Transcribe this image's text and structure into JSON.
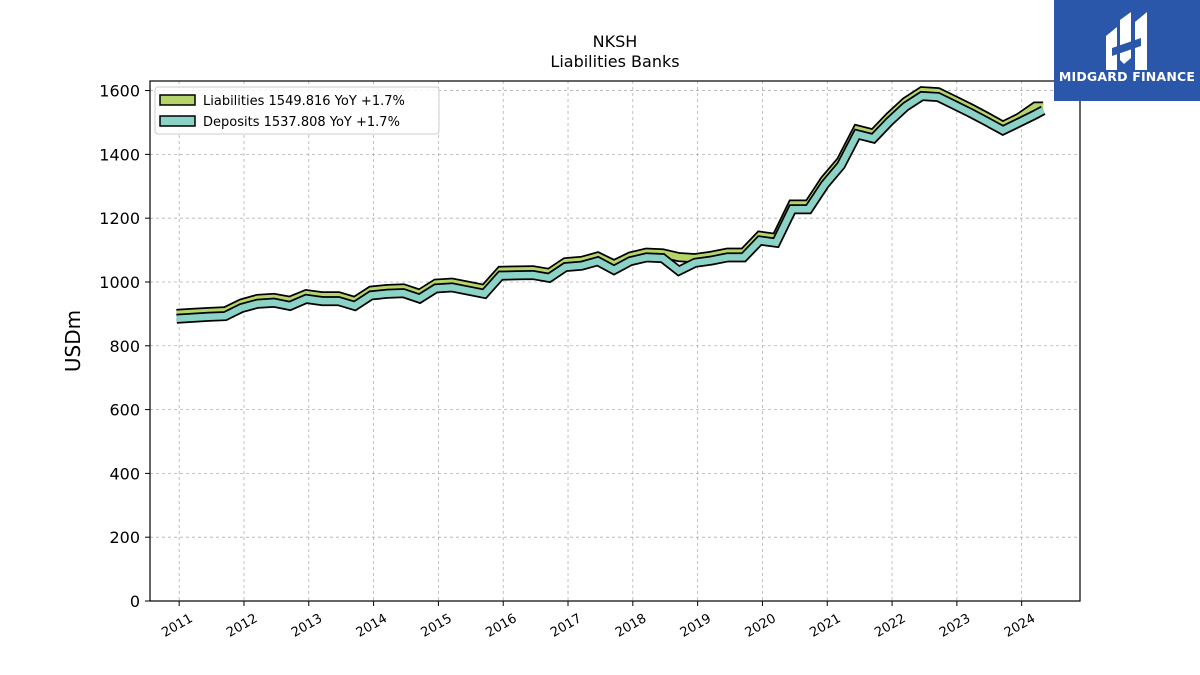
{
  "chart_data": {
    "type": "line",
    "title": "NKSH",
    "subtitle": "Liabilities Banks",
    "ylabel": "USDm",
    "xlabel": "",
    "ylim": [
      0,
      1630
    ],
    "xlim": [
      2010.55,
      2024.9
    ],
    "yticks": [
      0,
      200,
      400,
      600,
      800,
      1000,
      1200,
      1400,
      1600
    ],
    "xticks": [
      2011,
      2012,
      2013,
      2014,
      2015,
      2016,
      2017,
      2018,
      2019,
      2020,
      2021,
      2022,
      2023,
      2024
    ],
    "grid": true,
    "legend_position": "top-left",
    "series": [
      {
        "name": "Liabilities",
        "legend": "Liabilities  1549.816 YoY +1.7%",
        "color": "#b5d56a",
        "x": [
          2010.96,
          2011.21,
          2011.46,
          2011.71,
          2011.96,
          2012.21,
          2012.46,
          2012.71,
          2012.96,
          2013.21,
          2013.46,
          2013.71,
          2013.96,
          2014.21,
          2014.46,
          2014.71,
          2014.96,
          2015.21,
          2015.46,
          2015.71,
          2015.96,
          2016.21,
          2016.46,
          2016.71,
          2016.96,
          2017.21,
          2017.46,
          2017.71,
          2017.96,
          2018.21,
          2018.46,
          2018.71,
          2018.96,
          2019.21,
          2019.46,
          2019.71,
          2019.96,
          2020.21,
          2020.46,
          2020.71,
          2020.96,
          2021.21,
          2021.46,
          2021.71,
          2021.96,
          2022.21,
          2022.46,
          2022.71,
          2022.96,
          2023.21,
          2023.46,
          2023.71,
          2023.96,
          2024.21,
          2024.33
        ],
        "values": [
          900,
          903,
          906,
          908,
          933,
          947,
          950,
          941,
          962,
          955,
          955,
          940,
          973,
          978,
          980,
          963,
          995,
          998,
          988,
          978,
          1035,
          1036,
          1037,
          1028,
          1062,
          1066,
          1080,
          1055,
          1080,
          1092,
          1090,
          1078,
          1075,
          1082,
          1092,
          1092,
          1145,
          1138,
          1243,
          1243,
          1320,
          1380,
          1478,
          1465,
          1518,
          1565,
          1598,
          1595,
          1570,
          1545,
          1518,
          1490,
          1515,
          1550,
          1550
        ]
      },
      {
        "name": "Deposits",
        "legend": "Deposits  1537.808 YoY +1.7%",
        "color": "#8bd3c7",
        "x": [
          2010.96,
          2011.21,
          2011.46,
          2011.71,
          2011.96,
          2012.21,
          2012.46,
          2012.71,
          2012.96,
          2013.21,
          2013.46,
          2013.71,
          2013.96,
          2014.21,
          2014.46,
          2014.71,
          2014.96,
          2015.21,
          2015.46,
          2015.71,
          2015.96,
          2016.21,
          2016.46,
          2016.71,
          2016.96,
          2017.21,
          2017.46,
          2017.71,
          2017.96,
          2018.21,
          2018.46,
          2018.71,
          2018.96,
          2019.21,
          2019.46,
          2019.71,
          2019.96,
          2020.21,
          2020.46,
          2020.71,
          2020.96,
          2021.21,
          2021.46,
          2021.71,
          2021.96,
          2022.21,
          2022.46,
          2022.71,
          2022.96,
          2023.21,
          2023.46,
          2023.71,
          2023.96,
          2024.21,
          2024.33
        ],
        "values": [
          885,
          888,
          891,
          893,
          918,
          932,
          935,
          925,
          947,
          940,
          940,
          925,
          958,
          963,
          965,
          948,
          980,
          983,
          973,
          963,
          1020,
          1021,
          1022,
          1013,
          1047,
          1051,
          1065,
          1038,
          1065,
          1077,
          1075,
          1035,
          1060,
          1067,
          1077,
          1077,
          1130,
          1123,
          1228,
          1228,
          1305,
          1365,
          1463,
          1450,
          1503,
          1550,
          1583,
          1580,
          1555,
          1530,
          1503,
          1475,
          1500,
          1525,
          1538
        ]
      }
    ]
  },
  "logo": {
    "text": "MIDGARD FINANCE",
    "background": "#2a57a9"
  }
}
